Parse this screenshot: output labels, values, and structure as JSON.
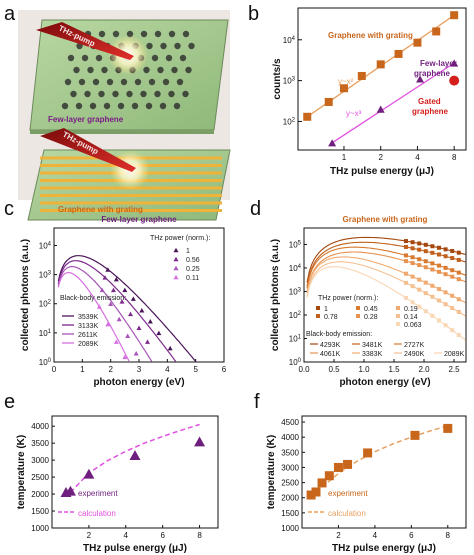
{
  "panel_letters": {
    "a": "a",
    "b": "b",
    "c": "c",
    "d": "d",
    "e": "e",
    "f": "f"
  },
  "panel_a": {
    "pump_label_top": "THz-pump",
    "pump_label_bottom": "THz-pump",
    "caption_top": "Few-layer graphene",
    "caption_bottom": "Graphene with grating"
  },
  "colors": {
    "orange": "#c8661c",
    "purple": "#6f1f7d",
    "red": "#d4201d",
    "magenta": "#d74fd8",
    "calc_e": "#e050e0",
    "calc_f": "#e8a060"
  },
  "chart_data": [
    {
      "panel": "b",
      "type": "scatter",
      "xlabel": "THz pulse energy (μJ)",
      "ylabel": "counts/s",
      "xscale": "log",
      "yscale": "log",
      "xticks": [
        "1",
        "2",
        "4",
        "8"
      ],
      "ytick_exponents": [
        "2",
        "3",
        "4"
      ],
      "ylim": [
        20,
        60000
      ],
      "series": [
        {
          "name": "Graphene with grating",
          "marker": "square",
          "color": "#c8661c",
          "x": [
            0.5,
            0.75,
            1.0,
            1.4,
            2.0,
            2.8,
            4.0,
            5.7,
            8.0
          ],
          "y": [
            130,
            300,
            650,
            1300,
            2500,
            4500,
            8500,
            16000,
            40000
          ]
        },
        {
          "name": "Few-layer graphene",
          "marker": "triangle",
          "color": "#6f1f7d",
          "x": [
            0.8,
            2.0,
            4.2,
            8.0
          ],
          "y": [
            30,
            200,
            1100,
            2700
          ]
        },
        {
          "name": "Gated graphene",
          "marker": "circle",
          "color": "#d4201d",
          "x": [
            8.0
          ],
          "y": [
            1000
          ]
        }
      ],
      "fits": [
        {
          "label": "y~x²",
          "color": "#e8a060"
        },
        {
          "label": "y~x³",
          "color": "#e050e0"
        }
      ]
    },
    {
      "panel": "c",
      "type": "scatter",
      "title": "Few-layer graphene",
      "xlabel": "photon energy (eV)",
      "ylabel": "collected photons (a.u.)",
      "xlim": [
        0,
        6
      ],
      "xticks": [
        "0",
        "1",
        "2",
        "3",
        "4",
        "5",
        "6"
      ],
      "ytick_exponents": [
        "0",
        "1",
        "2",
        "3",
        "4"
      ],
      "yscale": "log",
      "power_legend_title": "THz power (norm.):",
      "series": [
        {
          "name": "1",
          "color": "#4a1559",
          "x": [
            1.9,
            2.2,
            2.5,
            2.8,
            3.1,
            3.4,
            3.7,
            4.1
          ],
          "y": [
            1500,
            700,
            300,
            150,
            60,
            25,
            10,
            3
          ]
        },
        {
          "name": "0.56",
          "color": "#7d2a8c",
          "x": [
            1.8,
            2.1,
            2.4,
            2.7,
            3.0,
            3.3
          ],
          "y": [
            800,
            300,
            120,
            45,
            15,
            5
          ]
        },
        {
          "name": "0.25",
          "color": "#a855b8",
          "x": [
            1.7,
            2.0,
            2.3,
            2.6,
            2.9
          ],
          "y": [
            300,
            100,
            30,
            8,
            2
          ]
        },
        {
          "name": "0.11",
          "color": "#d66fe0",
          "x": [
            1.6,
            1.9,
            2.2,
            2.5
          ],
          "y": [
            80,
            20,
            5,
            1.5
          ]
        }
      ],
      "bb_legend_title": "Black-body emission:",
      "blackbody": [
        "3539K",
        "3133K",
        "2611K",
        "2089K"
      ]
    },
    {
      "panel": "d",
      "type": "scatter",
      "title": "Graphene with grating",
      "xlabel": "photon energy (eV)",
      "ylabel": "collected photons (a.u.)",
      "xlim": [
        0,
        2.7
      ],
      "xticks": [
        "0.0",
        "0.5",
        "1.0",
        "1.5",
        "2.0",
        "2.5"
      ],
      "ytick_exponents": [
        "0",
        "1",
        "2",
        "3",
        "4",
        "5"
      ],
      "yscale": "log",
      "power_legend_title": "THz power (norm.):",
      "series": [
        {
          "name": "1",
          "color": "#a5480f"
        },
        {
          "name": "0.78",
          "color": "#c0601c"
        },
        {
          "name": "0.45",
          "color": "#d87a30"
        },
        {
          "name": "0.28",
          "color": "#e89250"
        },
        {
          "name": "0.19",
          "color": "#f0aa70"
        },
        {
          "name": "0.14",
          "color": "#f5c090"
        },
        {
          "name": "0.063",
          "color": "#f9d6b4"
        }
      ],
      "bb_legend_title": "Black-body emission:",
      "blackbody": [
        "4293K",
        "3481K",
        "2727K",
        "4061K",
        "3383K",
        "2490K",
        "2089K"
      ]
    },
    {
      "panel": "e",
      "type": "scatter",
      "xlabel": "THz pulse energy (μJ)",
      "ylabel": "temperature (K)",
      "xlim": [
        0,
        9
      ],
      "ylim": [
        1000,
        4300
      ],
      "xticks": [
        "2",
        "4",
        "6",
        "8"
      ],
      "yticks": [
        "1000",
        "1500",
        "2000",
        "2500",
        "3000",
        "3500",
        "4000"
      ],
      "series": [
        {
          "name": "experiment",
          "marker": "triangle",
          "color": "#6f1f7d",
          "x": [
            1.0,
            2.0,
            4.5,
            8.0
          ],
          "y": [
            2100,
            2600,
            3150,
            3550
          ]
        }
      ],
      "calculation": {
        "name": "calculation",
        "color": "#e050e0",
        "x": [
          1.0,
          2.0,
          3.0,
          4.0,
          5.0,
          6.0,
          7.0,
          8.0
        ],
        "y": [
          2050,
          2620,
          2980,
          3260,
          3500,
          3700,
          3880,
          4050
        ]
      }
    },
    {
      "panel": "f",
      "type": "scatter",
      "xlabel": "THz pulse energy (μJ)",
      "ylabel": "temperature (K)",
      "xlim": [
        0,
        9
      ],
      "ylim": [
        1000,
        4700
      ],
      "xticks": [
        "2",
        "4",
        "6",
        "8"
      ],
      "yticks": [
        "1000",
        "1500",
        "2000",
        "2500",
        "3000",
        "3500",
        "4000",
        "4500"
      ],
      "series": [
        {
          "name": "experiment",
          "marker": "square",
          "color": "#c8661c",
          "x": [
            0.5,
            1.1,
            1.5,
            2.0,
            2.5,
            3.6,
            6.2,
            8.0
          ],
          "y": [
            2090,
            2490,
            2727,
            3000,
            3100,
            3480,
            4060,
            4290
          ]
        }
      ],
      "calculation": {
        "name": "calculation",
        "color": "#e8a060",
        "x": [
          0.5,
          1.0,
          2.0,
          3.0,
          4.0,
          5.0,
          6.0,
          7.0,
          8.0
        ],
        "y": [
          1950,
          2300,
          2800,
          3200,
          3520,
          3780,
          4000,
          4200,
          4380
        ]
      }
    }
  ]
}
